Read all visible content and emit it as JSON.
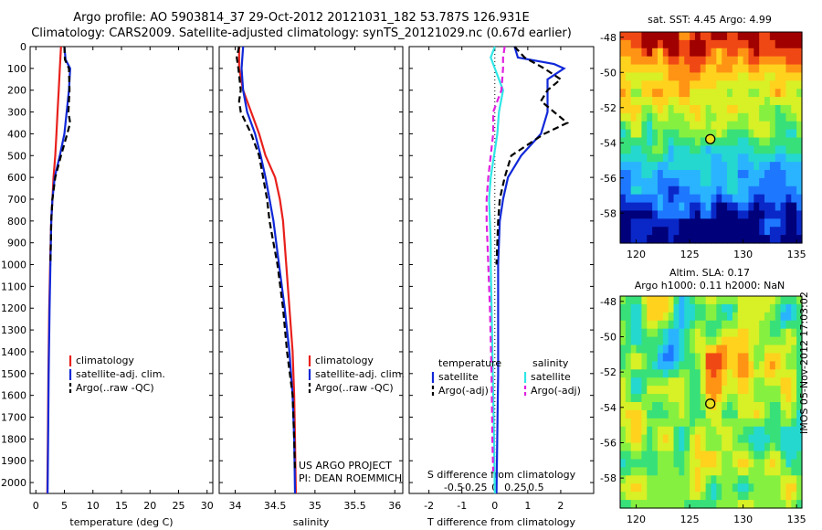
{
  "header": {
    "line1": "Argo profile: AO 5903814_37 29-Oct-2012 20121031_182 53.787S 126.931E",
    "line2": "Climatology: CARS2009. Satellite-adjusted climatology: synTS_20121029.nc (0.67d earlier)"
  },
  "colors": {
    "climatology": "#e8201c",
    "satellite": "#1028d8",
    "argo": "#000000",
    "diff_sat_T": "#1028d8",
    "diff_argo_T": "#000000",
    "diff_sat_S": "#30e6e6",
    "diff_argo_S": "#e020e0"
  },
  "chart_data": [
    {
      "id": "temperature",
      "type": "line",
      "xlabel": "temperature (deg C)",
      "xlim": [
        -1,
        31
      ],
      "xticks": [
        0,
        5,
        10,
        15,
        20,
        25,
        30
      ],
      "ylim": [
        2050,
        0
      ],
      "yticks": [
        0,
        100,
        200,
        300,
        400,
        500,
        600,
        700,
        800,
        900,
        1000,
        1100,
        1200,
        1300,
        1400,
        1500,
        1600,
        1700,
        1800,
        1900,
        2000
      ],
      "legend": [
        "climatology",
        "satellite-adj. clim.",
        "Argo(..raw -QC)"
      ],
      "series": [
        {
          "name": "climatology",
          "style": "solid",
          "color_key": "climatology",
          "depth": [
            0,
            100,
            200,
            300,
            400,
            500,
            600,
            700,
            800,
            1000,
            1200,
            1500,
            1800,
            2050
          ],
          "values": [
            4.4,
            4.2,
            4.0,
            3.8,
            3.6,
            3.4,
            3.1,
            2.9,
            2.7,
            2.5,
            2.35,
            2.2,
            2.1,
            2.0
          ]
        },
        {
          "name": "satellite-adj. clim.",
          "style": "solid",
          "color_key": "satellite",
          "depth": [
            0,
            60,
            100,
            200,
            300,
            400,
            500,
            600,
            700,
            800,
            1000,
            1200,
            1500,
            1800,
            2050
          ],
          "values": [
            5.0,
            5.2,
            6.0,
            5.8,
            5.4,
            5.0,
            4.2,
            3.3,
            2.9,
            2.7,
            2.55,
            2.4,
            2.25,
            2.15,
            2.05
          ]
        },
        {
          "name": "Argo(..raw -QC)",
          "style": "dashed",
          "color_key": "argo",
          "depth": [
            0,
            60,
            100,
            200,
            300,
            350,
            400,
            500,
            600,
            700,
            800,
            1000
          ],
          "values": [
            5.0,
            5.1,
            5.8,
            5.9,
            5.7,
            6.0,
            5.5,
            4.4,
            3.4,
            2.9,
            2.7,
            2.55
          ]
        }
      ]
    },
    {
      "id": "salinity",
      "type": "line",
      "xlabel": "salinity",
      "xlim": [
        33.8,
        36.1
      ],
      "xticks": [
        34,
        34.5,
        35,
        35.5,
        36
      ],
      "ylim": [
        2050,
        0
      ],
      "legend": [
        "climatology",
        "satellite-adj. clim.",
        "Argo(..raw -QC)"
      ],
      "annotation": [
        "US ARGO PROJECT",
        "PI: DEAN ROEMMICH"
      ],
      "series": [
        {
          "name": "climatology",
          "style": "solid",
          "color_key": "climatology",
          "depth": [
            0,
            100,
            200,
            300,
            400,
            500,
            600,
            700,
            800,
            1000,
            1200,
            1400,
            1600,
            1800,
            2050
          ],
          "values": [
            34.05,
            34.05,
            34.1,
            34.2,
            34.3,
            34.38,
            34.5,
            34.56,
            34.6,
            34.64,
            34.68,
            34.72,
            34.74,
            34.75,
            34.76
          ],
          "values_note": ""
        },
        {
          "name": "satellite-adj. clim.",
          "style": "solid",
          "color_key": "satellite",
          "depth": [
            0,
            100,
            200,
            300,
            400,
            500,
            600,
            700,
            800,
            1000,
            1200,
            1400,
            1600,
            1800,
            2050
          ],
          "values": [
            34.1,
            34.08,
            34.1,
            34.15,
            34.25,
            34.32,
            34.38,
            34.43,
            34.48,
            34.55,
            34.62,
            34.68,
            34.72,
            34.74,
            34.75
          ]
        },
        {
          "name": "Argo(..raw -QC)",
          "style": "dashed",
          "color_key": "argo",
          "depth": [
            0,
            50,
            100,
            200,
            250,
            300,
            400,
            500,
            600,
            700,
            800,
            900,
            1000,
            1200,
            1400,
            1600,
            1800,
            1950
          ],
          "values": [
            34.05,
            34.02,
            34.04,
            34.07,
            34.05,
            34.07,
            34.2,
            34.3,
            34.35,
            34.4,
            34.43,
            34.48,
            34.53,
            34.6,
            34.65,
            34.72,
            34.74,
            34.75
          ]
        }
      ]
    },
    {
      "id": "difference",
      "type": "line",
      "xlabel": "T difference from climatology",
      "xlabel_top": "S difference from climatology",
      "xlim": [
        -2.6,
        3.0
      ],
      "xticks": [
        -2,
        -1,
        0,
        1,
        2
      ],
      "s_ticks": [
        -0.5,
        -0.25,
        0,
        0.25,
        0.5
      ],
      "s_tick_labels": [
        "-0.5",
        "-0.25",
        "0",
        "0.25",
        "0.5"
      ],
      "ylim": [
        2050,
        0
      ],
      "legend_titles": [
        "temperature",
        "salinity"
      ],
      "legend_T": [
        "satellite",
        "Argo(-adj)"
      ],
      "legend_S": [
        "satellite",
        "Argo(-adj)"
      ],
      "series": [
        {
          "name": "satellite",
          "quantity": "T",
          "style": "solid",
          "color_key": "diff_sat_T",
          "depth": [
            0,
            50,
            80,
            100,
            150,
            200,
            300,
            400,
            500,
            600,
            700,
            800,
            1000,
            1500,
            2050
          ],
          "values": [
            0.6,
            0.7,
            1.8,
            2.1,
            1.6,
            1.6,
            1.6,
            1.4,
            0.8,
            0.4,
            0.25,
            0.15,
            0.1,
            0.1,
            0.05
          ]
        },
        {
          "name": "Argo(-adj)",
          "quantity": "T",
          "style": "dashed",
          "color_key": "diff_argo_T",
          "depth": [
            0,
            50,
            100,
            150,
            200,
            250,
            300,
            350,
            400,
            450,
            500,
            600,
            700,
            800,
            1000
          ],
          "values": [
            0.6,
            0.9,
            1.5,
            2.0,
            1.6,
            1.4,
            1.8,
            2.2,
            1.5,
            1.0,
            0.5,
            0.3,
            0.15,
            0.1,
            0.05
          ]
        },
        {
          "name": "satellite",
          "quantity": "S",
          "style": "solid",
          "color_key": "diff_sat_S",
          "depth": [
            0,
            50,
            100,
            200,
            300,
            400,
            500,
            600,
            700,
            800,
            900,
            1000,
            1200,
            1400,
            1600,
            1800,
            2050
          ],
          "values": [
            0.0,
            -0.05,
            0.0,
            0.1,
            0.05,
            0.03,
            -0.01,
            -0.05,
            -0.07,
            -0.06,
            -0.05,
            -0.05,
            -0.04,
            -0.03,
            -0.02,
            -0.01,
            0.0
          ]
        },
        {
          "name": "Argo(-adj)",
          "quantity": "S",
          "style": "dashed",
          "color_key": "diff_argo_S",
          "depth": [
            0,
            50,
            100,
            150,
            200,
            250,
            300,
            400,
            500,
            600,
            700,
            800,
            900,
            1000,
            1200,
            1500,
            1800,
            1950
          ],
          "values": [
            0.12,
            0.1,
            0.1,
            0.09,
            0.08,
            0.03,
            -0.02,
            -0.02,
            -0.05,
            -0.08,
            -0.1,
            -0.1,
            -0.09,
            -0.08,
            -0.06,
            -0.04,
            -0.03,
            -0.02
          ]
        }
      ]
    },
    {
      "id": "sst-map",
      "type": "heatmap",
      "title": "sat. SST: 4.45  Argo: 4.99",
      "xlim": [
        118.5,
        135.5
      ],
      "ylim": [
        -59.7,
        -47.7
      ],
      "xticks": [
        120,
        125,
        130,
        135
      ],
      "yticks": [
        -48,
        -50,
        -52,
        -54,
        -56,
        -58
      ],
      "marker": [
        126.93,
        -53.79
      ],
      "colorscale": [
        "#00007a",
        "#0a28c8",
        "#1e78ff",
        "#2ab4ff",
        "#24d8d0",
        "#38e07a",
        "#86f040",
        "#d8f026",
        "#ffd21e",
        "#ff9414",
        "#f04814",
        "#a00000"
      ]
    },
    {
      "id": "sla-map",
      "type": "heatmap",
      "title": "Altim. SLA: 0.17",
      "subtitle": "Argo h1000: 0.11  h2000: NaN",
      "xlim": [
        118.5,
        135.5
      ],
      "ylim": [
        -59.7,
        -47.7
      ],
      "xticks": [
        120,
        125,
        130,
        135
      ],
      "yticks": [
        -48,
        -50,
        -52,
        -54,
        -56,
        -58
      ],
      "marker": [
        126.93,
        -53.79
      ],
      "colorscale": [
        "#1e78ff",
        "#2ab4ff",
        "#24d8d0",
        "#38e07a",
        "#86f040",
        "#d8f026",
        "#ffd21e",
        "#ff9414",
        "#f04814"
      ]
    }
  ],
  "footer": {
    "timestamp": "IMOS 05-Nov-2012 17:03:02"
  }
}
